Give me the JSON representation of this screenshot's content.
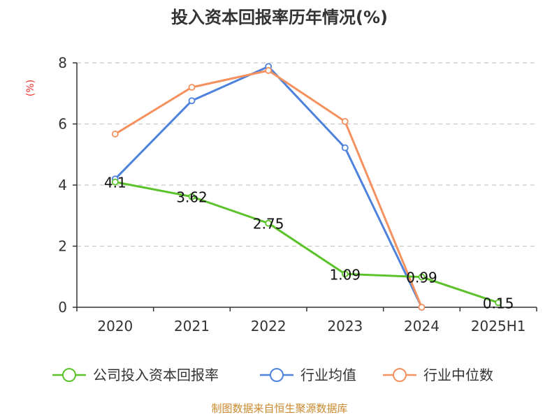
{
  "chart_data": {
    "type": "line",
    "title": "投入资本回报率历年情况(%)",
    "ylabel": "(%)",
    "categories": [
      "2020",
      "2021",
      "2022",
      "2023",
      "2024",
      "2025H1"
    ],
    "ylim": [
      0,
      8
    ],
    "yticks": [
      "0",
      "2",
      "4",
      "6",
      "8"
    ],
    "grid": true,
    "legend_position": "bottom",
    "series": [
      {
        "name": "公司投入资本回报率",
        "color": "#5cc22b",
        "values": [
          4.1,
          3.62,
          2.75,
          1.09,
          0.99,
          0.15
        ],
        "labels": [
          "4.1",
          "3.62",
          "2.75",
          "1.09",
          "0.99",
          "0.15"
        ]
      },
      {
        "name": "行业均值",
        "color": "#4e82dc",
        "values": [
          4.2,
          6.76,
          7.88,
          5.22,
          0.0,
          null
        ]
      },
      {
        "name": "行业中位数",
        "color": "#f4915f",
        "values": [
          5.67,
          7.2,
          7.75,
          6.08,
          0.0,
          null
        ]
      }
    ],
    "source": "制图数据来自恒生聚源数据库"
  }
}
